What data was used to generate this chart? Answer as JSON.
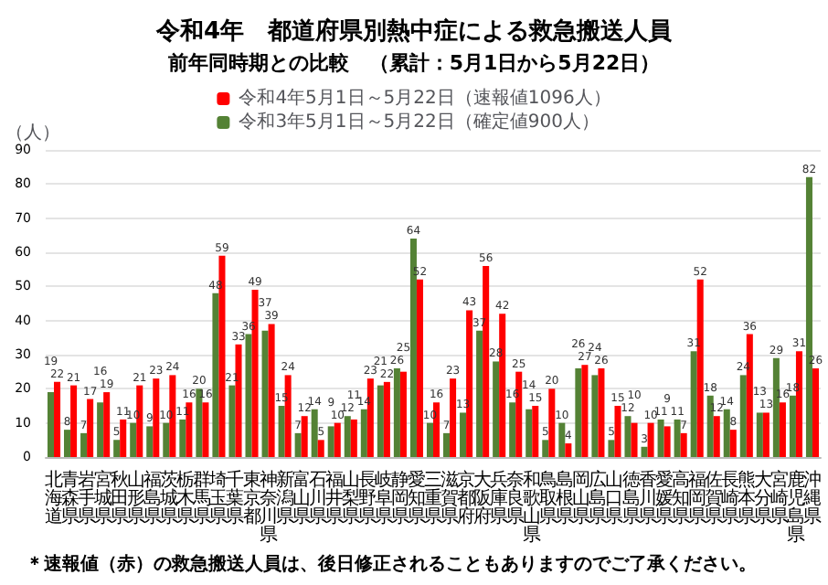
{
  "chart_data": {
    "type": "bar",
    "title": "令和4年　都道府県別熱中症による救急搬送人員",
    "subtitle": "前年同時期との比較　（累計：5月1日から5月22日）",
    "ylabel": "（人）",
    "categories": [
      "北海道",
      "青森県",
      "岩手県",
      "宮城県",
      "秋田県",
      "山形県",
      "福島県",
      "茨城県",
      "栃木県",
      "群馬県",
      "埼玉県",
      "千葉県",
      "東京都",
      "神奈川県",
      "新潟県",
      "富山県",
      "石川県",
      "福井県",
      "山梨県",
      "長野県",
      "岐阜県",
      "静岡県",
      "愛知県",
      "三重県",
      "滋賀県",
      "京都府",
      "大阪府",
      "兵庫県",
      "奈良県",
      "和歌山県",
      "鳥取県",
      "島根県",
      "岡山県",
      "広島県",
      "山口県",
      "徳島県",
      "香川県",
      "愛媛県",
      "高知県",
      "福岡県",
      "佐賀県",
      "長崎県",
      "熊本県",
      "大分県",
      "宮崎県",
      "鹿児島県",
      "沖縄県"
    ],
    "series": [
      {
        "name": "令和3年5月1日～5月22日（確定値900人）",
        "color": "#548235",
        "values": [
          19,
          8,
          7,
          16,
          5,
          10,
          9,
          10,
          11,
          20,
          48,
          21,
          36,
          37,
          15,
          7,
          14,
          9,
          12,
          14,
          21,
          26,
          64,
          10,
          7,
          13,
          37,
          28,
          16,
          14,
          5,
          10,
          26,
          24,
          5,
          12,
          3,
          11,
          11,
          31,
          18,
          14,
          24,
          13,
          29,
          18,
          82
        ]
      },
      {
        "name": "令和4年5月1日～5月22日（速報値1096人）",
        "color": "#ff0000",
        "values": [
          22,
          21,
          17,
          19,
          11,
          21,
          23,
          24,
          16,
          16,
          59,
          33,
          49,
          39,
          24,
          12,
          5,
          10,
          11,
          23,
          22,
          25,
          52,
          16,
          23,
          43,
          56,
          42,
          25,
          15,
          20,
          4,
          27,
          26,
          15,
          10,
          10,
          9,
          7,
          52,
          12,
          8,
          36,
          13,
          16,
          31,
          26
        ]
      }
    ],
    "ylim": [
      0,
      90
    ],
    "yticks": [
      0,
      10,
      20,
      30,
      40,
      50,
      60,
      70,
      80,
      90
    ],
    "grid": "y",
    "legend": "top",
    "data_labels": true,
    "annotations": [
      "＊速報値（赤）の救急搬送人員は、後日修正されることもありますのでご了承ください。"
    ]
  }
}
